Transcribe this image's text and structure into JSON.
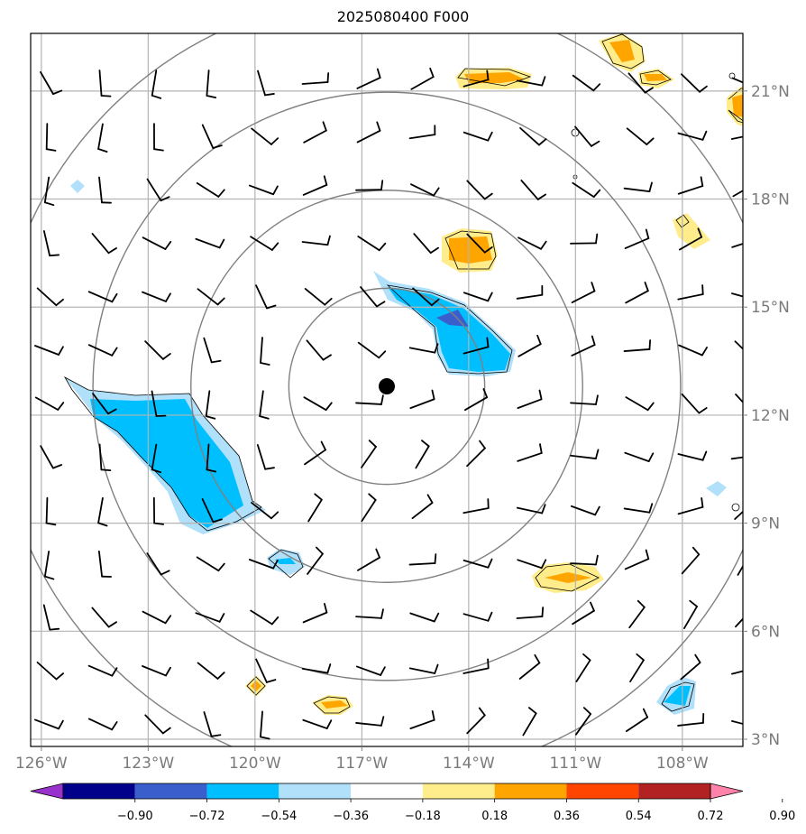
{
  "title": "2025080400 F000",
  "map": {
    "lon_range": [
      -126.3,
      -106.3
    ],
    "lat_range": [
      2.8,
      22.6
    ],
    "center": {
      "lon": -116.3,
      "lat": 12.8
    },
    "range_rings_deg": [
      2.75,
      5.5,
      8.25,
      11
    ],
    "meridians": [
      -126,
      -123,
      -120,
      -117,
      -114,
      -111,
      -108
    ],
    "parallels": [
      3,
      6,
      9,
      12,
      15,
      18,
      21
    ],
    "lon_labels": [
      "126°W",
      "123°W",
      "120°W",
      "117°W",
      "114°W",
      "111°W",
      "108°W"
    ],
    "lat_labels": [
      "3°N",
      "6°N",
      "9°N",
      "12°N",
      "15°N",
      "18°N",
      "21°N"
    ]
  },
  "colorbar": {
    "ticks": [
      "−0.90",
      "−0.72",
      "−0.54",
      "−0.36",
      "−0.18",
      "0.18",
      "0.36",
      "0.54",
      "0.72",
      "0.90"
    ],
    "colors": [
      "#9932cc",
      "#00008b",
      "#3a5fcd",
      "#00bfff",
      "#b0e0fa",
      "#ffffff",
      "#ffec8b",
      "#ffa500",
      "#ff4500",
      "#b22222",
      "#ff82ab"
    ]
  },
  "fields": {
    "light_blue": "#b0e0fa",
    "deep_sky": "#00bfff",
    "royal": "#3a5fcd",
    "yellow": "#ffec8b",
    "orange": "#ffa500"
  }
}
